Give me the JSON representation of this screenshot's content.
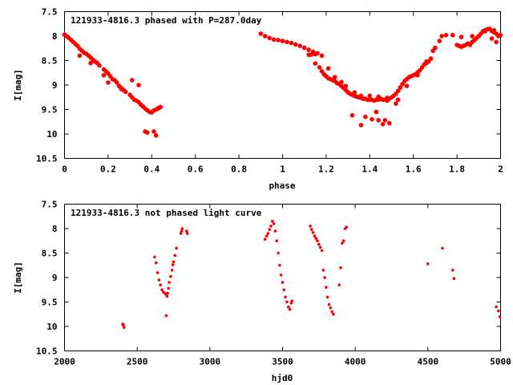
{
  "chart_data": [
    {
      "type": "scatter",
      "title": "121933-4816.3 phased with P=287.0day",
      "xlabel": "phase",
      "ylabel": "I[mag]",
      "xlim": [
        0,
        2
      ],
      "ylim": [
        7.5,
        10.5
      ],
      "y_inverted": true,
      "grid": false,
      "marker_color": "#ff0000",
      "marker": "filled-circle",
      "xticks": [
        "0",
        "0.2",
        "0.4",
        "0.6",
        "0.8",
        "1",
        "1.2",
        "1.4",
        "1.6",
        "1.8",
        "2"
      ],
      "yticks": [
        "7.5",
        "8",
        "8.5",
        "9",
        "9.5",
        "10",
        "10.5"
      ],
      "series": [
        {
          "values": [
            [
              0.0,
              7.97
            ],
            [
              0.01,
              8.0
            ],
            [
              0.02,
              8.04
            ],
            [
              0.03,
              8.08
            ],
            [
              0.04,
              8.12
            ],
            [
              0.05,
              8.16
            ],
            [
              0.06,
              8.2
            ],
            [
              0.07,
              8.26
            ],
            [
              0.08,
              8.3
            ],
            [
              0.09,
              8.34
            ],
            [
              0.1,
              8.36
            ],
            [
              0.11,
              8.4
            ],
            [
              0.12,
              8.44
            ],
            [
              0.13,
              8.48
            ],
            [
              0.14,
              8.52
            ],
            [
              0.15,
              8.55
            ],
            [
              0.16,
              8.6
            ],
            [
              0.18,
              8.68
            ],
            [
              0.19,
              8.72
            ],
            [
              0.2,
              8.76
            ],
            [
              0.21,
              8.82
            ],
            [
              0.22,
              8.88
            ],
            [
              0.23,
              8.9
            ],
            [
              0.24,
              8.95
            ],
            [
              0.25,
              9.02
            ],
            [
              0.26,
              9.06
            ],
            [
              0.27,
              9.1
            ],
            [
              0.28,
              9.14
            ],
            [
              0.3,
              9.2
            ],
            [
              0.31,
              9.25
            ],
            [
              0.32,
              9.3
            ],
            [
              0.33,
              9.32
            ],
            [
              0.34,
              9.35
            ],
            [
              0.35,
              9.4
            ],
            [
              0.36,
              9.44
            ],
            [
              0.37,
              9.48
            ],
            [
              0.38,
              9.52
            ],
            [
              0.39,
              9.55
            ],
            [
              0.4,
              9.56
            ],
            [
              0.41,
              9.52
            ],
            [
              0.42,
              9.5
            ],
            [
              0.43,
              9.47
            ],
            [
              0.44,
              9.45
            ],
            [
              0.07,
              8.4
            ],
            [
              0.12,
              8.55
            ],
            [
              0.18,
              8.8
            ],
            [
              0.2,
              8.95
            ],
            [
              0.26,
              9.08
            ],
            [
              0.31,
              8.9
            ],
            [
              0.34,
              9.0
            ],
            [
              0.37,
              9.95
            ],
            [
              0.38,
              9.97
            ],
            [
              0.41,
              9.95
            ],
            [
              0.42,
              10.03
            ],
            [
              0.43,
              9.48
            ],
            [
              0.9,
              7.95
            ],
            [
              0.92,
              8.0
            ],
            [
              0.94,
              8.04
            ],
            [
              0.96,
              8.07
            ],
            [
              0.98,
              8.08
            ],
            [
              1.0,
              8.1
            ],
            [
              1.02,
              8.12
            ],
            [
              1.04,
              8.14
            ],
            [
              1.06,
              8.17
            ],
            [
              1.08,
              8.2
            ],
            [
              1.1,
              8.24
            ],
            [
              1.12,
              8.28
            ],
            [
              1.14,
              8.32
            ],
            [
              1.16,
              8.35
            ],
            [
              1.18,
              8.4
            ],
            [
              1.12,
              8.38
            ],
            [
              1.13,
              8.38
            ],
            [
              1.15,
              8.37
            ],
            [
              1.15,
              8.56
            ],
            [
              1.17,
              8.64
            ],
            [
              1.18,
              8.72
            ],
            [
              1.19,
              8.78
            ],
            [
              1.2,
              8.82
            ],
            [
              1.21,
              8.86
            ],
            [
              1.22,
              8.88
            ],
            [
              1.23,
              8.9
            ],
            [
              1.24,
              8.92
            ],
            [
              1.25,
              8.96
            ],
            [
              1.26,
              8.98
            ],
            [
              1.27,
              9.02
            ],
            [
              1.28,
              9.06
            ],
            [
              1.29,
              9.1
            ],
            [
              1.3,
              9.15
            ],
            [
              1.31,
              9.18
            ],
            [
              1.32,
              9.2
            ],
            [
              1.33,
              9.22
            ],
            [
              1.34,
              9.24
            ],
            [
              1.35,
              9.25
            ],
            [
              1.36,
              9.26
            ],
            [
              1.37,
              9.28
            ],
            [
              1.38,
              9.28
            ],
            [
              1.39,
              9.3
            ],
            [
              1.4,
              9.3
            ],
            [
              1.41,
              9.3
            ],
            [
              1.42,
              9.32
            ],
            [
              1.43,
              9.3
            ],
            [
              1.44,
              9.3
            ],
            [
              1.45,
              9.28
            ],
            [
              1.46,
              9.3
            ],
            [
              1.47,
              9.3
            ],
            [
              1.48,
              9.32
            ],
            [
              1.49,
              9.28
            ],
            [
              1.5,
              9.25
            ],
            [
              1.51,
              9.22
            ],
            [
              1.52,
              9.18
            ],
            [
              1.53,
              9.12
            ],
            [
              1.54,
              9.05
            ],
            [
              1.55,
              8.98
            ],
            [
              1.56,
              8.92
            ],
            [
              1.57,
              8.88
            ],
            [
              1.58,
              8.84
            ],
            [
              1.59,
              8.82
            ],
            [
              1.6,
              8.8
            ],
            [
              1.61,
              8.78
            ],
            [
              1.62,
              8.74
            ],
            [
              1.63,
              8.7
            ],
            [
              1.64,
              8.64
            ],
            [
              1.65,
              8.58
            ],
            [
              1.66,
              8.55
            ],
            [
              1.67,
              8.52
            ],
            [
              1.21,
              8.66
            ],
            [
              1.24,
              8.84
            ],
            [
              1.27,
              8.94
            ],
            [
              1.29,
              9.02
            ],
            [
              1.33,
              9.15
            ],
            [
              1.36,
              9.22
            ],
            [
              1.4,
              9.22
            ],
            [
              1.44,
              9.24
            ],
            [
              1.48,
              9.26
            ],
            [
              1.52,
              9.38
            ],
            [
              1.53,
              9.3
            ],
            [
              1.57,
              9.02
            ],
            [
              1.62,
              8.8
            ],
            [
              1.66,
              8.52
            ],
            [
              1.68,
              8.46
            ],
            [
              1.32,
              9.62
            ],
            [
              1.36,
              9.82
            ],
            [
              1.38,
              9.65
            ],
            [
              1.41,
              9.7
            ],
            [
              1.43,
              9.55
            ],
            [
              1.44,
              9.72
            ],
            [
              1.46,
              9.8
            ],
            [
              1.47,
              9.72
            ],
            [
              1.49,
              9.78
            ],
            [
              1.69,
              8.3
            ],
            [
              1.7,
              8.24
            ],
            [
              1.72,
              8.1
            ],
            [
              1.73,
              8.0
            ],
            [
              1.75,
              7.98
            ],
            [
              1.8,
              8.18
            ],
            [
              1.81,
              8.2
            ],
            [
              1.82,
              8.22
            ],
            [
              1.83,
              8.2
            ],
            [
              1.84,
              8.18
            ],
            [
              1.85,
              8.15
            ],
            [
              1.86,
              8.18
            ],
            [
              1.87,
              8.12
            ],
            [
              1.88,
              8.08
            ],
            [
              1.89,
              8.04
            ],
            [
              1.9,
              8.0
            ],
            [
              1.91,
              7.95
            ],
            [
              1.92,
              7.9
            ],
            [
              1.93,
              7.88
            ],
            [
              1.94,
              7.86
            ],
            [
              1.95,
              7.85
            ],
            [
              1.96,
              7.9
            ],
            [
              1.97,
              7.92
            ],
            [
              1.98,
              7.95
            ],
            [
              1.99,
              8.0
            ],
            [
              2.0,
              7.98
            ],
            [
              1.78,
              7.98
            ],
            [
              1.82,
              8.02
            ],
            [
              1.87,
              8.0
            ],
            [
              1.93,
              7.9
            ],
            [
              1.96,
              8.05
            ],
            [
              1.97,
              7.88
            ],
            [
              1.98,
              8.12
            ]
          ]
        }
      ]
    },
    {
      "type": "scatter",
      "title": "121933-4816.3 not phased light curve",
      "xlabel": "hjd0",
      "ylabel": "I[mag]",
      "xlim": [
        2000,
        5000
      ],
      "ylim": [
        7.5,
        10.5
      ],
      "y_inverted": true,
      "grid": false,
      "marker_color": "#ff0000",
      "marker": "filled-circle",
      "xticks": [
        "2000",
        "2500",
        "3000",
        "3500",
        "4000",
        "4500",
        "5000"
      ],
      "yticks": [
        "7.5",
        "8",
        "8.5",
        "9",
        "9.5",
        "10",
        "10.5"
      ],
      "series": [
        {
          "values": [
            [
              2400,
              9.95
            ],
            [
              2405,
              9.97
            ],
            [
              2410,
              10.02
            ],
            [
              2620,
              8.58
            ],
            [
              2630,
              8.7
            ],
            [
              2640,
              8.9
            ],
            [
              2650,
              9.05
            ],
            [
              2660,
              9.15
            ],
            [
              2670,
              9.25
            ],
            [
              2680,
              9.3
            ],
            [
              2690,
              9.32
            ],
            [
              2700,
              9.35
            ],
            [
              2705,
              9.38
            ],
            [
              2710,
              9.32
            ],
            [
              2715,
              9.22
            ],
            [
              2720,
              9.1
            ],
            [
              2730,
              8.98
            ],
            [
              2740,
              8.85
            ],
            [
              2745,
              8.74
            ],
            [
              2750,
              8.68
            ],
            [
              2760,
              8.55
            ],
            [
              2770,
              8.4
            ],
            [
              2700,
              9.78
            ],
            [
              2800,
              8.1
            ],
            [
              2805,
              8.05
            ],
            [
              2810,
              8.0
            ],
            [
              2840,
              8.05
            ],
            [
              2845,
              8.1
            ],
            [
              3380,
              8.22
            ],
            [
              3390,
              8.15
            ],
            [
              3400,
              8.1
            ],
            [
              3410,
              8.02
            ],
            [
              3420,
              7.95
            ],
            [
              3430,
              7.85
            ],
            [
              3440,
              7.9
            ],
            [
              3450,
              8.05
            ],
            [
              3460,
              8.25
            ],
            [
              3470,
              8.5
            ],
            [
              3480,
              8.75
            ],
            [
              3490,
              8.95
            ],
            [
              3500,
              9.1
            ],
            [
              3510,
              9.25
            ],
            [
              3520,
              9.4
            ],
            [
              3530,
              9.5
            ],
            [
              3540,
              9.6
            ],
            [
              3550,
              9.65
            ],
            [
              3560,
              9.52
            ],
            [
              3565,
              9.48
            ],
            [
              3690,
              7.95
            ],
            [
              3700,
              8.02
            ],
            [
              3710,
              8.08
            ],
            [
              3720,
              8.15
            ],
            [
              3730,
              8.2
            ],
            [
              3740,
              8.25
            ],
            [
              3750,
              8.32
            ],
            [
              3760,
              8.38
            ],
            [
              3770,
              8.45
            ],
            [
              3780,
              8.85
            ],
            [
              3790,
              9.0
            ],
            [
              3800,
              9.2
            ],
            [
              3810,
              9.4
            ],
            [
              3820,
              9.55
            ],
            [
              3830,
              9.62
            ],
            [
              3840,
              9.7
            ],
            [
              3850,
              9.75
            ],
            [
              3890,
              9.15
            ],
            [
              3900,
              8.8
            ],
            [
              3910,
              8.3
            ],
            [
              3920,
              8.25
            ],
            [
              3930,
              8.0
            ],
            [
              3940,
              7.97
            ],
            [
              4500,
              8.72
            ],
            [
              4600,
              8.4
            ],
            [
              4670,
              8.85
            ],
            [
              4680,
              9.02
            ],
            [
              4970,
              9.6
            ],
            [
              4985,
              9.68
            ],
            [
              4995,
              9.8
            ]
          ]
        }
      ]
    }
  ]
}
